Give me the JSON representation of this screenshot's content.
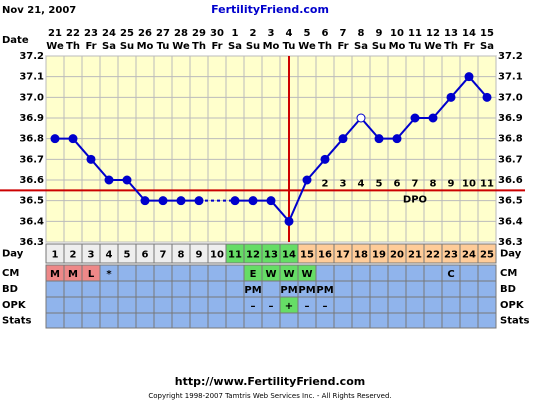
{
  "chart_data": {
    "type": "line",
    "date_label": "Nov 21, 2007",
    "title": "FertilityFriend.com",
    "footer_url": "http://www.FertilityFriend.com",
    "copyright": "Copyright 1998-2007 Tamtris Web Services Inc. - All Rights Reserved.",
    "row_labels": {
      "date": "Date",
      "day": "Day",
      "cm": "CM",
      "bd": "BD",
      "opk": "OPK",
      "stats": "Stats"
    },
    "dates": [
      "21",
      "22",
      "23",
      "24",
      "25",
      "26",
      "27",
      "28",
      "29",
      "30",
      "1",
      "2",
      "3",
      "4",
      "5",
      "6",
      "7",
      "8",
      "9",
      "10",
      "11",
      "12",
      "13",
      "14",
      "15"
    ],
    "weekdays": [
      "We",
      "Th",
      "Fr",
      "Sa",
      "Su",
      "Mo",
      "Tu",
      "We",
      "Th",
      "Fr",
      "Sa",
      "Su",
      "Mo",
      "Tu",
      "We",
      "Th",
      "Fr",
      "Sa",
      "Su",
      "Mo",
      "Tu",
      "We",
      "Th",
      "Fr",
      "Sa"
    ],
    "x": [
      1,
      2,
      3,
      4,
      5,
      6,
      7,
      8,
      9,
      10,
      11,
      12,
      13,
      14,
      15,
      16,
      17,
      18,
      19,
      20,
      21,
      22,
      23,
      24,
      25
    ],
    "values": [
      36.8,
      36.8,
      36.7,
      36.6,
      36.6,
      36.5,
      36.5,
      36.5,
      36.5,
      null,
      36.5,
      36.5,
      36.5,
      36.4,
      36.6,
      36.7,
      36.8,
      36.9,
      36.8,
      36.8,
      36.9,
      36.9,
      37.0,
      37.1,
      37.0
    ],
    "color": "#0000cc",
    "open_marker_days": [
      18
    ],
    "ylim": [
      36.3,
      37.2
    ],
    "yticks": [
      36.3,
      36.4,
      36.5,
      36.6,
      36.7,
      36.8,
      36.9,
      {
        "value": 37,
        "label": "37.0"
      },
      37.1,
      37.2
    ],
    "grid": true,
    "coverline": 36.55,
    "ovulation_day": 14,
    "marker_line_color": "#cc0000",
    "dpo_label": "DPO",
    "dpo": [
      null,
      null,
      null,
      null,
      null,
      null,
      null,
      null,
      null,
      null,
      null,
      null,
      null,
      null,
      null,
      2,
      3,
      4,
      5,
      6,
      7,
      8,
      9,
      10,
      11
    ],
    "fertile_window": [
      11,
      14
    ],
    "day_colors": {
      "default": "#eeeeee",
      "fertile": "#66dd66",
      "luteal": "#ffcc99"
    },
    "cm": [
      "M",
      "M",
      "L",
      "*",
      null,
      null,
      null,
      null,
      null,
      null,
      null,
      "E",
      "W",
      "W",
      "W",
      null,
      null,
      null,
      null,
      null,
      null,
      null,
      "C",
      null,
      null
    ],
    "bd": [
      null,
      null,
      null,
      null,
      null,
      null,
      null,
      null,
      null,
      null,
      null,
      "PM",
      null,
      "PM",
      "PM",
      "PM",
      null,
      null,
      null,
      null,
      null,
      null,
      null,
      null,
      null
    ],
    "opk": [
      null,
      null,
      null,
      null,
      null,
      null,
      null,
      null,
      null,
      null,
      null,
      "–",
      "–",
      "+",
      "–",
      "–",
      null,
      null,
      null,
      null,
      null,
      null,
      null,
      null,
      null
    ],
    "cell_colors": {
      "M": "#ee8888",
      "L": "#ee8888",
      "E": "#66dd66",
      "W": "#66dd66",
      "+": "#66dd66",
      "default": "#90b4ec"
    }
  }
}
